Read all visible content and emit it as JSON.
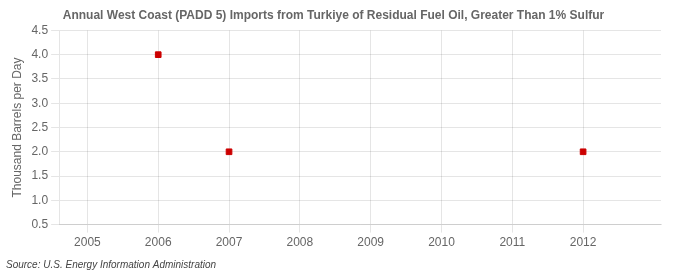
{
  "chart_data": {
    "type": "scatter",
    "title": "Annual West Coast (PADD 5) Imports from Turkiye of Residual Fuel Oil, Greater Than 1% Sulfur",
    "ylabel": "Thousand Barrels per Day",
    "source": "Source: U.S. Energy Information Administration",
    "x": [
      2006,
      2007,
      2012
    ],
    "values": [
      4.0,
      2.0,
      2.0
    ],
    "color": "#cc0000",
    "marker": "square",
    "xlim": [
      2004.6,
      2013.1
    ],
    "xticks": [
      2005,
      2006,
      2007,
      2008,
      2009,
      2010,
      2011,
      2012
    ],
    "ylim": [
      0.5,
      4.5
    ],
    "yticks": [
      0.5,
      {
        "value": 1.0,
        "label": "1.0"
      },
      1.5,
      {
        "value": 2.0,
        "label": "2.0"
      },
      2.5,
      {
        "value": 3.0,
        "label": "3.0"
      },
      3.5,
      {
        "value": 4.0,
        "label": "4.0"
      },
      4.5
    ],
    "grid": true
  }
}
